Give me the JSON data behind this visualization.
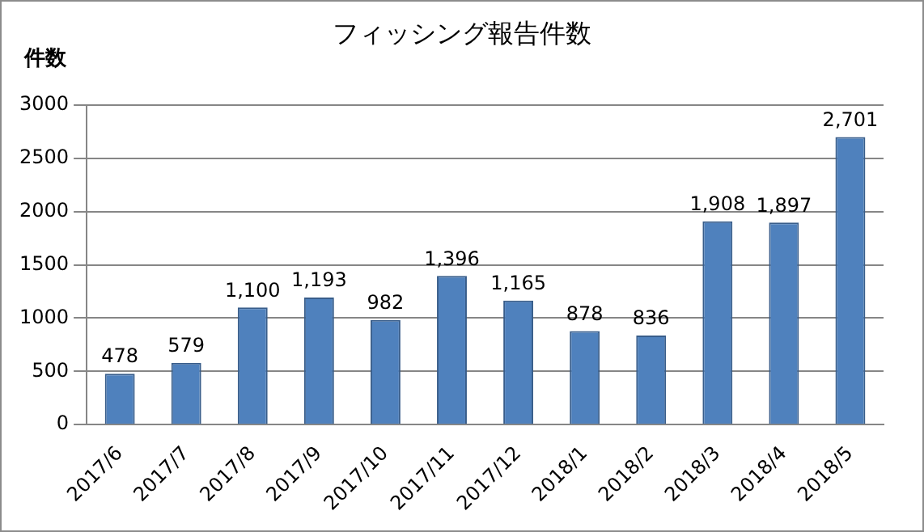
{
  "chart_data": {
    "type": "bar",
    "title": "フィッシング報告件数",
    "ylabel": "件数",
    "categories": [
      "2017/6",
      "2017/7",
      "2017/8",
      "2017/9",
      "2017/10",
      "2017/11",
      "2017/12",
      "2018/1",
      "2018/2",
      "2018/3",
      "2018/4",
      "2018/5"
    ],
    "values": [
      478,
      579,
      1100,
      1193,
      982,
      1396,
      1165,
      878,
      836,
      1908,
      1897,
      2701
    ],
    "value_labels": [
      "478",
      "579",
      "1,100",
      "1,193",
      "982",
      "1,396",
      "1,165",
      "878",
      "836",
      "1,908",
      "1,897",
      "2,701"
    ],
    "color": "#4f81bd",
    "ylim": [
      0,
      3000
    ],
    "yticks": [
      0,
      500,
      1000,
      1500,
      2000,
      2500,
      3000
    ],
    "grid": "y",
    "legend": false
  }
}
